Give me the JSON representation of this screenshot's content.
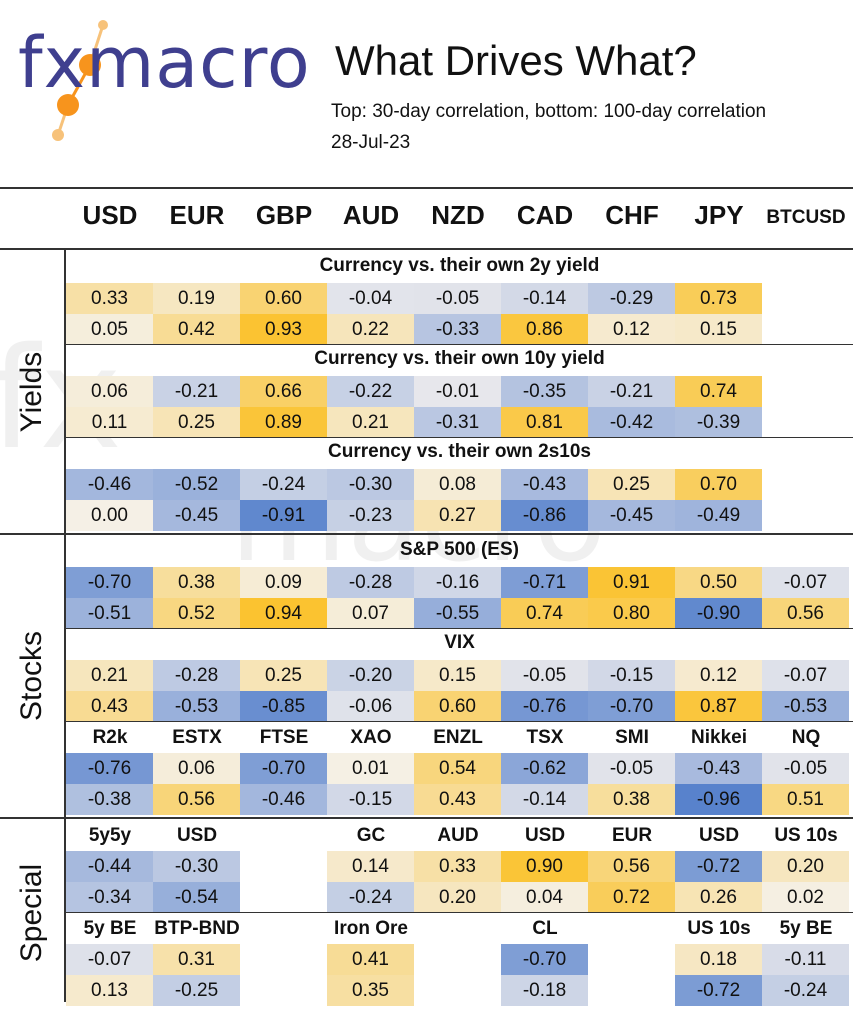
{
  "logo": {
    "text": "fxmacro",
    "accent_color": "#f7941d",
    "text_color": "#3f3f8f"
  },
  "title": "What Drives What?",
  "subtitle": "Top: 30-day correlation, bottom: 100-day correlation",
  "date": "28-Jul-23",
  "columns": [
    "USD",
    "EUR",
    "GBP",
    "AUD",
    "NZD",
    "CAD",
    "CHF",
    "JPY",
    "BTCUSD"
  ],
  "sections": [
    {
      "label": "Yields",
      "blocks": [
        {
          "title": "Currency vs. their own 2y yield",
          "top": [
            "0.33",
            "0.19",
            "0.60",
            "-0.04",
            "-0.05",
            "-0.14",
            "-0.29",
            "0.73",
            ""
          ],
          "bottom": [
            "0.05",
            "0.42",
            "0.93",
            "0.22",
            "-0.33",
            "0.86",
            "0.12",
            "0.15",
            ""
          ]
        },
        {
          "title": "Currency vs. their own 10y yield",
          "top": [
            "0.06",
            "-0.21",
            "0.66",
            "-0.22",
            "-0.01",
            "-0.35",
            "-0.21",
            "0.74",
            ""
          ],
          "bottom": [
            "0.11",
            "0.25",
            "0.89",
            "0.21",
            "-0.31",
            "0.81",
            "-0.42",
            "-0.39",
            ""
          ]
        },
        {
          "title": "Currency vs. their own 2s10s",
          "top": [
            "-0.46",
            "-0.52",
            "-0.24",
            "-0.30",
            "0.08",
            "-0.43",
            "0.25",
            "0.70",
            ""
          ],
          "bottom": [
            "0.00",
            "-0.45",
            "-0.91",
            "-0.23",
            "0.27",
            "-0.86",
            "-0.45",
            "-0.49",
            ""
          ]
        }
      ]
    },
    {
      "label": "Stocks",
      "blocks": [
        {
          "title": "S&P 500 (ES)",
          "top": [
            "-0.70",
            "0.38",
            "0.09",
            "-0.28",
            "-0.16",
            "-0.71",
            "0.91",
            "0.50",
            "-0.07"
          ],
          "bottom": [
            "-0.51",
            "0.52",
            "0.94",
            "0.07",
            "-0.55",
            "0.74",
            "0.80",
            "-0.90",
            "0.56"
          ]
        },
        {
          "title": "VIX",
          "top": [
            "0.21",
            "-0.28",
            "0.25",
            "-0.20",
            "0.15",
            "-0.05",
            "-0.15",
            "0.12",
            "-0.07"
          ],
          "bottom": [
            "0.43",
            "-0.53",
            "-0.85",
            "-0.06",
            "0.60",
            "-0.76",
            "-0.70",
            "0.87",
            "-0.53"
          ]
        },
        {
          "labels": [
            "R2k",
            "ESTX",
            "FTSE",
            "XAO",
            "ENZL",
            "TSX",
            "SMI",
            "Nikkei",
            "NQ"
          ],
          "top": [
            "-0.76",
            "0.06",
            "-0.70",
            "0.01",
            "0.54",
            "-0.62",
            "-0.05",
            "-0.43",
            "-0.05"
          ],
          "bottom": [
            "-0.38",
            "0.56",
            "-0.46",
            "-0.15",
            "0.43",
            "-0.14",
            "0.38",
            "-0.96",
            "0.51"
          ]
        }
      ]
    },
    {
      "label": "Special",
      "blocks": [
        {
          "labels": [
            "5y5y",
            "USD",
            "",
            "GC",
            "AUD",
            "USD",
            "EUR",
            "USD",
            "US 10s"
          ],
          "top": [
            "-0.44",
            "-0.30",
            "",
            "0.14",
            "0.33",
            "0.90",
            "0.56",
            "-0.72",
            "0.20"
          ],
          "bottom": [
            "-0.34",
            "-0.54",
            "",
            "-0.24",
            "0.20",
            "0.04",
            "0.72",
            "0.26",
            "0.02"
          ]
        },
        {
          "labels": [
            "5y BE",
            "BTP-BND",
            "",
            "Iron Ore",
            "",
            "CL",
            "",
            "US 10s",
            "5y BE"
          ],
          "top": [
            "-0.07",
            "0.31",
            "",
            "0.41",
            "",
            "-0.70",
            "",
            "0.18",
            "-0.11"
          ],
          "bottom": [
            "0.13",
            "-0.25",
            "",
            "0.35",
            "",
            "-0.18",
            "",
            "-0.72",
            "-0.24"
          ]
        }
      ]
    }
  ]
}
